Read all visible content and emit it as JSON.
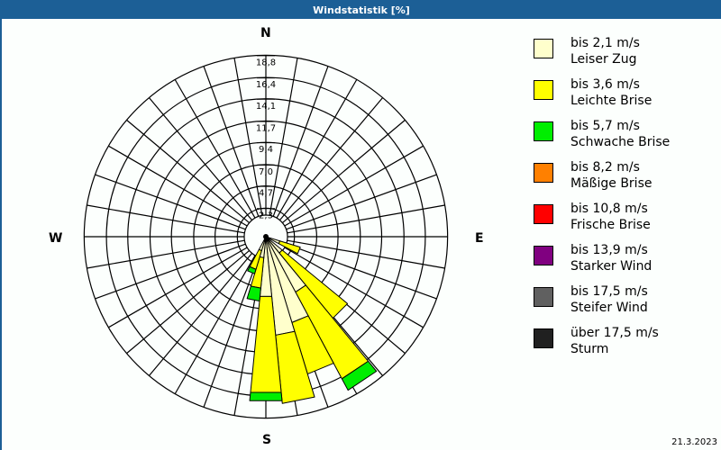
{
  "window": {
    "title": "Windstatistik [%]",
    "date": "21.3.2023"
  },
  "compass": {
    "north": "N",
    "east": "E",
    "south": "S",
    "west": "W"
  },
  "legend": [
    {
      "speed": "bis 2,1 m/s",
      "name": "Leiser Zug",
      "color": "#ffffcc"
    },
    {
      "speed": "bis 3,6 m/s",
      "name": "Leichte Brise",
      "color": "#ffff00"
    },
    {
      "speed": "bis 5,7 m/s",
      "name": "Schwache Brise",
      "color": "#00ee00"
    },
    {
      "speed": "bis 8,2 m/s",
      "name": "Mäßige Brise",
      "color": "#ff8000"
    },
    {
      "speed": "bis 10,8 m/s",
      "name": "Frische Brise",
      "color": "#ff0000"
    },
    {
      "speed": "bis 13,9 m/s",
      "name": "Starker Wind",
      "color": "#800080"
    },
    {
      "speed": "bis 17,5 m/s",
      "name": "Steifer Wind",
      "color": "#606060"
    },
    {
      "speed": "über 17,5 m/s",
      "name": "Sturm",
      "color": "#202020"
    }
  ],
  "chart_data": {
    "type": "polar-stacked-bar (wind rose)",
    "title": "Windstatistik [%]",
    "unit": "%",
    "radial_ticks": [
      "2,3",
      "4,7",
      "7,0",
      "9,4",
      "11,7",
      "14,1",
      "16,4",
      "18,8"
    ],
    "radial_tick_values": [
      2.3,
      4.7,
      7.0,
      9.4,
      11.7,
      14.1,
      16.4,
      18.8
    ],
    "rmax": 18.8,
    "spokes_deg": 10,
    "sector_width_deg": 11.25,
    "series_names": [
      "bis 2,1 m/s",
      "bis 3,6 m/s",
      "bis 5,7 m/s",
      "bis 8,2 m/s",
      "bis 10,8 m/s",
      "bis 13,9 m/s",
      "bis 17,5 m/s",
      "über 17,5 m/s"
    ],
    "sectors": [
      {
        "bearing": 112.5,
        "cumulative": [
          0.8,
          3.1,
          3.1
        ]
      },
      {
        "bearing": 135.0,
        "cumulative": [
          1.5,
          10.6,
          10.6
        ]
      },
      {
        "bearing": 146.25,
        "cumulative": [
          6.0,
          16.6,
          18.0
        ]
      },
      {
        "bearing": 157.5,
        "cumulative": [
          8.9,
          14.7,
          14.7
        ]
      },
      {
        "bearing": 168.75,
        "cumulative": [
          9.9,
          17.3,
          17.3
        ]
      },
      {
        "bearing": 180.0,
        "cumulative": [
          5.7,
          16.1,
          17.0
        ]
      },
      {
        "bearing": 191.25,
        "cumulative": [
          1.5,
          4.8,
          6.2
        ]
      },
      {
        "bearing": 202.5,
        "cumulative": [
          0.8,
          2.9,
          3.4
        ]
      }
    ],
    "legend_position": "right"
  }
}
